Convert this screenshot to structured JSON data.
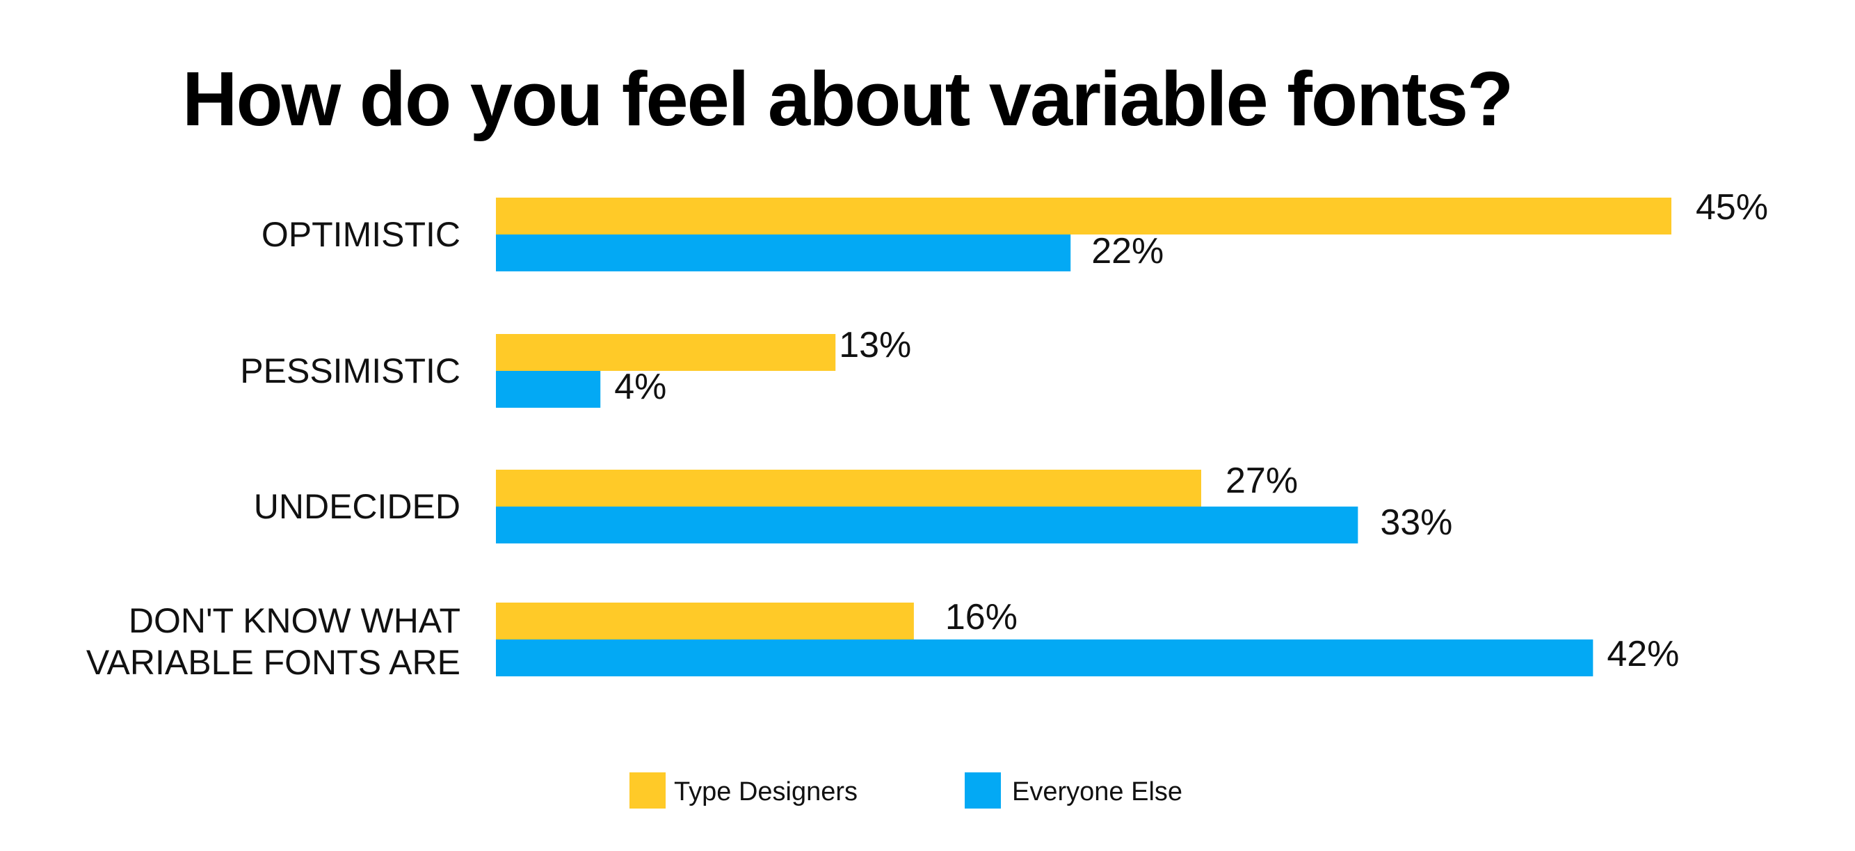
{
  "chart_data": {
    "type": "bar",
    "orientation": "horizontal",
    "title": "How do you feel about variable fonts?",
    "categories": [
      [
        "OPTIMISTIC"
      ],
      [
        "PESSIMISTIC"
      ],
      [
        "UNDECIDED"
      ],
      [
        "DON'T KNOW WHAT",
        "VARIABLE FONTS ARE"
      ]
    ],
    "series": [
      {
        "name": "Type Designers",
        "color": "#FFCA28",
        "values": [
          45,
          13,
          27,
          16
        ],
        "labels": [
          "45%",
          "13%",
          "27%",
          "16%"
        ]
      },
      {
        "name": "Everyone Else",
        "color": "#03A9F4",
        "values": [
          22,
          4,
          33,
          42
        ],
        "labels": [
          "22%",
          "4%",
          "33%",
          "42%"
        ]
      }
    ],
    "unit": "%",
    "xlim": [
      0,
      45
    ],
    "grid": false,
    "legend_position": "bottom-center"
  }
}
